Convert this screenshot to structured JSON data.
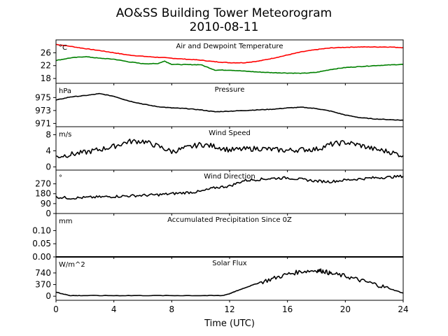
{
  "title_line1": "AO&SS Building Tower Meteorogram",
  "title_line2": "2010-08-11",
  "xlabel": "Time (UTC)",
  "x_ticks": [
    "0",
    "4",
    "8",
    "12",
    "16",
    "20",
    "24"
  ],
  "chart_data": [
    {
      "type": "line",
      "title": "Air and Dewpoint Temperature",
      "unit": "°C",
      "ylim": [
        16.5,
        30
      ],
      "yticks": [
        18,
        22,
        26
      ],
      "series": [
        {
          "color": "#ff0000",
          "x": [
            0,
            1,
            2,
            3,
            4,
            5,
            6,
            7,
            8,
            9,
            10,
            11,
            12,
            13,
            14,
            15,
            16,
            17,
            18,
            19,
            20,
            21,
            22,
            23,
            24
          ],
          "y": [
            28.6,
            28.0,
            27.3,
            26.7,
            26.0,
            25.3,
            24.9,
            24.6,
            24.3,
            24.0,
            23.7,
            23.2,
            22.9,
            22.9,
            23.4,
            24.3,
            25.3,
            26.3,
            27.0,
            27.5,
            27.7,
            27.8,
            27.8,
            27.8,
            27.6
          ]
        },
        {
          "color": "#008000",
          "x": [
            0,
            1,
            2,
            3,
            4,
            5,
            6,
            7,
            7.5,
            8,
            9,
            10,
            11,
            12,
            13,
            14,
            15,
            16,
            17,
            18,
            19,
            20,
            21,
            22,
            23,
            24
          ],
          "y": [
            23.6,
            24.4,
            24.8,
            24.3,
            24.0,
            23.2,
            22.6,
            22.6,
            23.4,
            22.4,
            22.3,
            22.3,
            20.6,
            20.6,
            20.3,
            20.0,
            19.8,
            19.7,
            19.6,
            19.9,
            20.8,
            21.4,
            21.7,
            22.0,
            22.2,
            22.4
          ]
        }
      ]
    },
    {
      "type": "line",
      "title": "Pressure",
      "unit": "hPa",
      "ylim": [
        970.5,
        977.2
      ],
      "yticks": [
        971,
        973,
        975
      ],
      "series": [
        {
          "color": "#000000",
          "x": [
            0,
            1,
            2,
            3,
            4,
            5,
            6,
            7,
            8,
            9,
            10,
            11,
            12,
            13,
            14,
            15,
            16,
            17,
            18,
            19,
            20,
            21,
            22,
            23,
            24
          ],
          "y": [
            974.6,
            975.1,
            975.3,
            975.6,
            975.2,
            974.5,
            974.0,
            973.6,
            973.4,
            973.3,
            973.1,
            972.8,
            972.9,
            973.0,
            973.1,
            973.2,
            973.4,
            973.5,
            973.3,
            972.9,
            972.3,
            971.9,
            971.7,
            971.6,
            971.5
          ]
        }
      ]
    },
    {
      "type": "line",
      "title": "Wind Speed",
      "unit": "m/s",
      "ylim": [
        -0.8,
        10
      ],
      "yticks": [
        0,
        4,
        8
      ],
      "series": [
        {
          "color": "#000000",
          "x": [
            0,
            1,
            2,
            3,
            4,
            5,
            6,
            7,
            8,
            9,
            10,
            11,
            12,
            13,
            14,
            15,
            16,
            17,
            18,
            19,
            20,
            21,
            22,
            23,
            24
          ],
          "y": [
            2.5,
            3.1,
            3.6,
            4.3,
            5.1,
            6.3,
            6.4,
            5.2,
            3.8,
            4.7,
            5.6,
            5.1,
            4.2,
            4.4,
            4.6,
            4.3,
            4.1,
            4.3,
            4.4,
            5.6,
            6.1,
            5.4,
            4.4,
            3.8,
            2.8
          ]
        }
      ]
    },
    {
      "type": "line",
      "title": "Wind Direction",
      "unit": "°",
      "ylim": [
        0,
        395
      ],
      "yticks": [
        0,
        90,
        180,
        270
      ],
      "series": [
        {
          "color": "#000000",
          "x": [
            0,
            1,
            2,
            3,
            4,
            5,
            6,
            7,
            8,
            9,
            10,
            11,
            12,
            13,
            14,
            15,
            16,
            17,
            18,
            19,
            20,
            21,
            22,
            23,
            24
          ],
          "y": [
            150,
            140,
            145,
            150,
            155,
            160,
            165,
            170,
            180,
            190,
            200,
            235,
            250,
            300,
            310,
            320,
            325,
            310,
            295,
            290,
            305,
            315,
            325,
            330,
            340
          ]
        }
      ]
    },
    {
      "type": "line",
      "title": "Accumulated Precipitation Since 0Z",
      "unit": "mm",
      "ylim": [
        0,
        0.165
      ],
      "yticks": [
        0.0,
        0.05,
        0.1
      ],
      "series": [
        {
          "color": "#000000",
          "x": [
            0,
            24
          ],
          "y": [
            0,
            0
          ]
        }
      ]
    },
    {
      "type": "line",
      "title": "Solar Flux",
      "unit": "W/m^2",
      "ylim": [
        -130,
        1250
      ],
      "yticks": [
        0,
        370,
        740
      ],
      "series": [
        {
          "color": "#000000",
          "x": [
            0,
            0.5,
            1,
            2,
            4,
            6,
            8,
            10,
            11.5,
            12,
            12.5,
            13,
            14,
            15,
            16,
            17,
            18,
            18.5,
            19,
            20,
            21,
            22,
            23,
            24
          ],
          "y": [
            130,
            70,
            20,
            20,
            20,
            20,
            20,
            20,
            20,
            80,
            170,
            260,
            420,
            560,
            700,
            790,
            820,
            800,
            720,
            640,
            510,
            390,
            250,
            100
          ]
        }
      ]
    }
  ]
}
